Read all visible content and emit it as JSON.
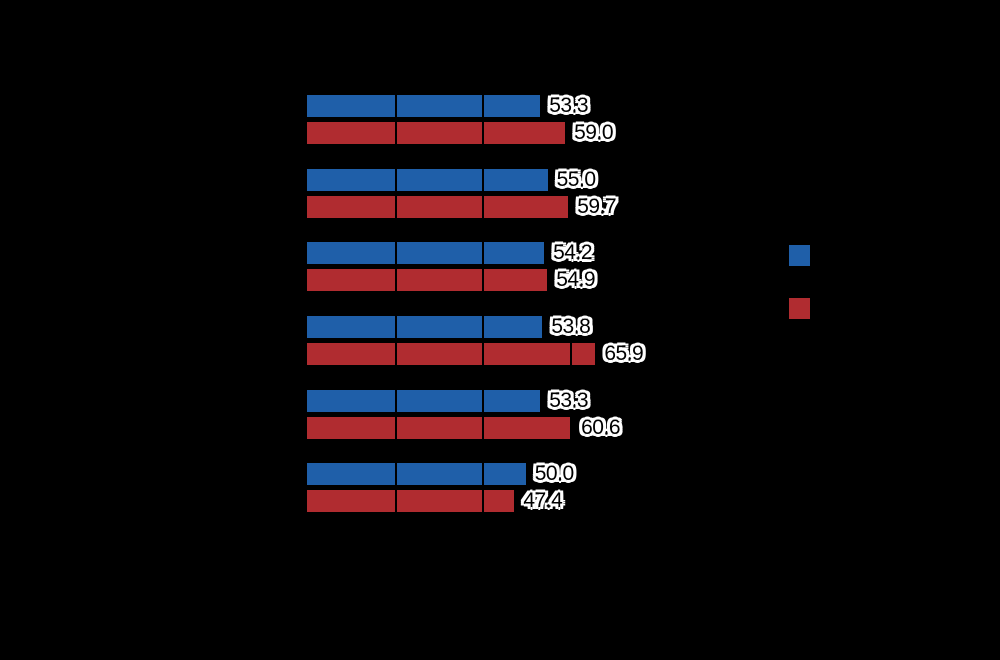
{
  "page": {
    "background": "#000000"
  },
  "chart_data": {
    "type": "bar",
    "orientation": "horizontal",
    "title": "",
    "xlabel": "",
    "ylabel": "",
    "categories": [
      "",
      "",
      "",
      "",
      "",
      ""
    ],
    "series": [
      {
        "name": "series-1-blue",
        "color": "#1F5FA9",
        "values": [
          53.3,
          55.0,
          54.2,
          53.8,
          53.3,
          50.0
        ]
      },
      {
        "name": "series-2-red",
        "color": "#B02C30",
        "values": [
          59.0,
          59.7,
          54.9,
          65.9,
          60.6,
          47.4
        ]
      }
    ],
    "value_labels": {
      "visible": true,
      "decimals": 1,
      "text_color": "#000000",
      "halo_color": "#FFFFFF"
    },
    "xlim": [
      0,
      80
    ],
    "gridlines_x": [
      20,
      40,
      60
    ],
    "grid": true,
    "legend": {
      "position": "right-middle",
      "entries": [
        {
          "swatch_color": "#1F5FA9",
          "label": ""
        },
        {
          "swatch_color": "#B02C30",
          "label": ""
        }
      ]
    }
  }
}
